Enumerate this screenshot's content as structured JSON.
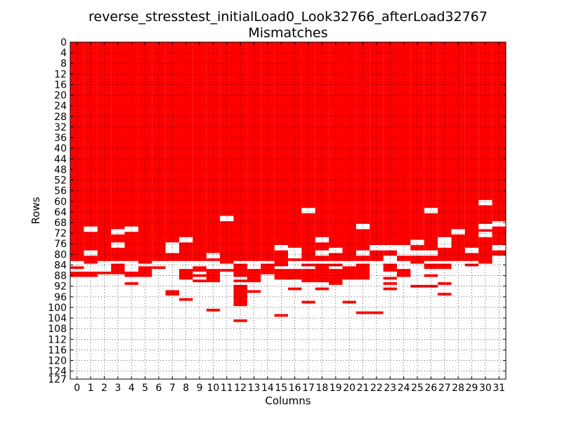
{
  "chart_data": {
    "type": "heatmap",
    "title_line1": "reverse_stresstest_initialLoad0_Look32766_afterLoad32767",
    "title_line2": "Mismatches",
    "xlabel": "Columns",
    "ylabel": "Rows",
    "x_ticks": [
      "0",
      "1",
      "2",
      "3",
      "4",
      "5",
      "6",
      "7",
      "8",
      "9",
      "10",
      "11",
      "12",
      "13",
      "14",
      "15",
      "16",
      "17",
      "18",
      "19",
      "20",
      "21",
      "22",
      "23",
      "24",
      "25",
      "26",
      "27",
      "28",
      "29",
      "30",
      "31"
    ],
    "y_ticks": [
      "0",
      "4",
      "8",
      "12",
      "16",
      "20",
      "24",
      "28",
      "32",
      "36",
      "40",
      "44",
      "48",
      "52",
      "56",
      "60",
      "64",
      "68",
      "72",
      "76",
      "80",
      "84",
      "88",
      "92",
      "96",
      "100",
      "104",
      "108",
      "112",
      "116",
      "120",
      "124",
      "127"
    ],
    "grid": true,
    "ncols": 32,
    "nrows": 128,
    "mismatch_color": "#ff0000",
    "match_color": "#ffffff",
    "full_rows_through": 82,
    "column_tail_rows": [
      [
        85,
        87,
        88
      ],
      [
        83,
        87,
        88
      ],
      [
        87
      ],
      [
        84,
        85,
        86,
        87
      ],
      [
        87,
        88,
        91
      ],
      [
        83,
        85,
        86,
        87,
        88
      ],
      [
        85
      ],
      [
        94,
        95
      ],
      [
        86,
        87,
        88,
        89,
        97
      ],
      [
        85,
        86,
        88,
        90
      ],
      [
        86,
        87,
        88,
        89,
        90,
        101
      ],
      [
        83,
        86
      ],
      [
        84,
        85,
        86,
        87,
        88,
        90,
        92,
        93,
        94,
        95,
        96,
        97,
        98,
        99,
        105
      ],
      [
        86,
        87,
        88,
        89,
        90,
        94
      ],
      [
        84,
        85,
        86,
        87
      ],
      [
        83,
        84,
        86,
        87,
        88,
        89,
        103
      ],
      [
        86,
        87,
        88,
        89,
        93
      ],
      [
        84,
        86,
        87,
        88,
        89,
        90,
        98
      ],
      [
        84,
        85,
        86,
        87,
        88,
        89,
        90,
        93
      ],
      [
        84,
        86,
        87,
        88,
        89,
        90,
        91
      ],
      [
        85,
        86,
        87,
        88,
        89,
        98
      ],
      [
        84,
        85,
        86,
        87,
        88,
        89,
        102
      ],
      [
        102
      ],
      [
        84,
        85,
        86,
        89,
        91,
        93
      ],
      [
        86,
        87,
        88
      ],
      [
        83,
        92
      ],
      [
        84,
        85,
        88,
        92
      ],
      [
        84,
        85,
        91,
        95
      ],
      [],
      [
        84
      ],
      [
        83
      ],
      []
    ],
    "column_gap_rows": [
      [],
      [
        70,
        71,
        79,
        80
      ],
      [],
      [
        71,
        72,
        76,
        77
      ],
      [
        70,
        71
      ],
      [],
      [],
      [
        76,
        77,
        78,
        79
      ],
      [
        74,
        75
      ],
      [],
      [
        80,
        81
      ],
      [
        66,
        67
      ],
      [],
      [],
      [],
      [
        77,
        78
      ],
      [
        78,
        79,
        80,
        81
      ],
      [
        63,
        64
      ],
      [
        74,
        75,
        79,
        80
      ],
      [
        78,
        79
      ],
      [],
      [
        69,
        70,
        79,
        80
      ],
      [
        77,
        78
      ],
      [
        77,
        78,
        81,
        82
      ],
      [
        77,
        78,
        79,
        80
      ],
      [
        75,
        76,
        79,
        80
      ],
      [
        63,
        64,
        79,
        80
      ],
      [
        74,
        75,
        76,
        77
      ],
      [
        71,
        72
      ],
      [
        78,
        79
      ],
      [
        60,
        61,
        69,
        70,
        72,
        73
      ],
      [
        68,
        69,
        77,
        78,
        81,
        82
      ]
    ]
  }
}
